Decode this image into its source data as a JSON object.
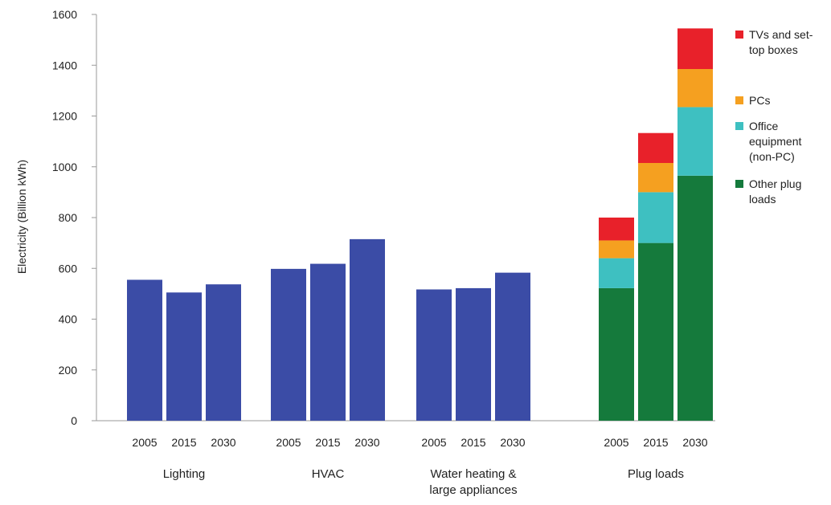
{
  "chart_data": {
    "type": "bar",
    "ylabel": "Electricity (Billion kWh)",
    "ylim": [
      0,
      1600
    ],
    "yticks": [
      0,
      200,
      400,
      600,
      800,
      1000,
      1200,
      1400,
      1600
    ],
    "grid": false,
    "legend_position": "right",
    "colors": {
      "bar": "#3b4ca6",
      "tvs": "#e8212a",
      "pcs": "#f5a020",
      "office": "#3ec0c1",
      "other": "#157a3c"
    },
    "groups": [
      {
        "label_lines": [
          "Lighting"
        ],
        "bars": [
          {
            "year": "2005",
            "value": 555
          },
          {
            "year": "2015",
            "value": 505
          },
          {
            "year": "2030",
            "value": 537
          }
        ]
      },
      {
        "label_lines": [
          "HVAC"
        ],
        "bars": [
          {
            "year": "2005",
            "value": 598
          },
          {
            "year": "2015",
            "value": 618
          },
          {
            "year": "2030",
            "value": 715
          }
        ]
      },
      {
        "label_lines": [
          "Water heating &",
          "large appliances"
        ],
        "bars": [
          {
            "year": "2005",
            "value": 517
          },
          {
            "year": "2015",
            "value": 522
          },
          {
            "year": "2030",
            "value": 583
          }
        ]
      },
      {
        "label_lines": [
          "Plug loads"
        ],
        "stacked": true,
        "bars": [
          {
            "year": "2005",
            "segments": {
              "other": 522,
              "office": 118,
              "pcs": 70,
              "tvs": 90
            }
          },
          {
            "year": "2015",
            "segments": {
              "other": 700,
              "office": 200,
              "pcs": 115,
              "tvs": 118
            }
          },
          {
            "year": "2030",
            "segments": {
              "other": 965,
              "office": 270,
              "pcs": 150,
              "tvs": 160
            }
          }
        ]
      }
    ],
    "legend": [
      {
        "key": "tvs",
        "lines": [
          "TVs and set-",
          "top boxes"
        ]
      },
      {
        "key": "pcs",
        "lines": [
          "PCs"
        ]
      },
      {
        "key": "office",
        "lines": [
          "Office",
          "equipment",
          "(non-PC)"
        ]
      },
      {
        "key": "other",
        "lines": [
          "Other plug",
          "loads"
        ]
      }
    ]
  }
}
